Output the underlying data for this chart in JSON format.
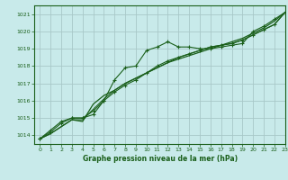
{
  "title": "Graphe pression niveau de la mer (hPa)",
  "bg_color": "#c8eaea",
  "grid_color": "#a8c8c8",
  "line_color": "#1a5f1a",
  "xlim": [
    -0.5,
    23
  ],
  "ylim": [
    1013.5,
    1021.5
  ],
  "yticks": [
    1014,
    1015,
    1016,
    1017,
    1018,
    1019,
    1020,
    1021
  ],
  "xticks": [
    0,
    1,
    2,
    3,
    4,
    5,
    6,
    7,
    8,
    9,
    10,
    11,
    12,
    13,
    14,
    15,
    16,
    17,
    18,
    19,
    20,
    21,
    22,
    23
  ],
  "series1_x": [
    0,
    1,
    2,
    3,
    4,
    5,
    6,
    7,
    8,
    9,
    10,
    11,
    12,
    13,
    14,
    15,
    16,
    17,
    18,
    19,
    20,
    21,
    22,
    23
  ],
  "series1_y": [
    1013.8,
    1014.3,
    1014.8,
    1015.0,
    1015.0,
    1015.2,
    1016.0,
    1017.2,
    1017.9,
    1018.0,
    1018.9,
    1019.1,
    1019.4,
    1019.1,
    1019.1,
    1019.0,
    1019.0,
    1019.1,
    1019.2,
    1019.3,
    1020.0,
    1020.3,
    1020.7,
    1021.1
  ],
  "series2_x": [
    0,
    1,
    2,
    3,
    4,
    5,
    6,
    7,
    8,
    9,
    10,
    11,
    12,
    13,
    14,
    15,
    16,
    17,
    18,
    19,
    20,
    21,
    22,
    23
  ],
  "series2_y": [
    1013.8,
    1014.1,
    1014.5,
    1014.9,
    1014.8,
    1015.8,
    1016.3,
    1016.6,
    1017.0,
    1017.3,
    1017.6,
    1017.9,
    1018.2,
    1018.4,
    1018.6,
    1018.8,
    1019.0,
    1019.2,
    1019.4,
    1019.6,
    1019.9,
    1020.2,
    1020.6,
    1021.1
  ],
  "series3_x": [
    0,
    1,
    2,
    3,
    4,
    5,
    6,
    7,
    8,
    9,
    10,
    11,
    12,
    13,
    14,
    15,
    16,
    17,
    18,
    19,
    20,
    21,
    22,
    23
  ],
  "series3_y": [
    1013.8,
    1014.2,
    1014.7,
    1015.0,
    1015.0,
    1015.4,
    1016.0,
    1016.5,
    1016.9,
    1017.2,
    1017.6,
    1018.0,
    1018.3,
    1018.5,
    1018.7,
    1018.9,
    1019.1,
    1019.2,
    1019.3,
    1019.5,
    1019.8,
    1020.1,
    1020.4,
    1021.1
  ],
  "series4_x": [
    0,
    1,
    2,
    3,
    4,
    5,
    6,
    7,
    8,
    9,
    10,
    11,
    12,
    13,
    14,
    15,
    16,
    17,
    18,
    19,
    20,
    21,
    22,
    23
  ],
  "series4_y": [
    1013.8,
    1014.1,
    1014.5,
    1014.9,
    1014.9,
    1015.5,
    1016.1,
    1016.6,
    1017.0,
    1017.3,
    1017.6,
    1017.9,
    1018.2,
    1018.5,
    1018.7,
    1018.9,
    1019.1,
    1019.2,
    1019.3,
    1019.5,
    1019.8,
    1020.1,
    1020.4,
    1021.1
  ]
}
